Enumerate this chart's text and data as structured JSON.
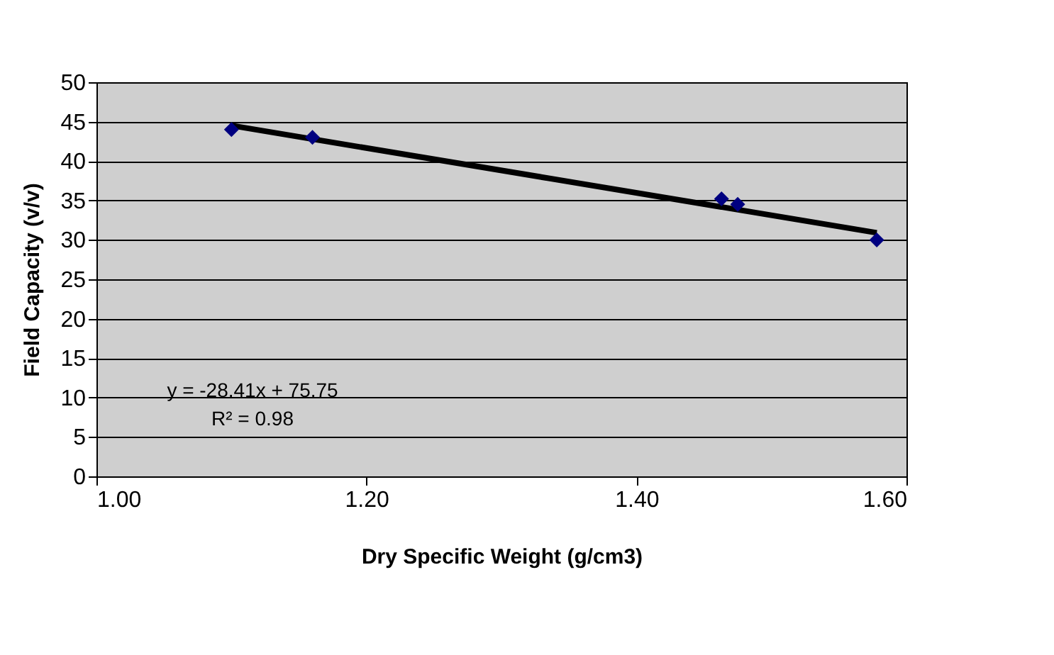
{
  "chart_data": {
    "type": "scatter",
    "xlabel": "Dry Specific Weight (g/cm3)",
    "ylabel": "Field Capacity (v/v)",
    "series": [
      {
        "color": "#000080",
        "marker": "diamond",
        "x": [
          1.1,
          1.16,
          1.463,
          1.475,
          1.578
        ],
        "values": [
          44,
          43,
          35.2,
          34.5,
          30
        ]
      },
      {
        "type": "line",
        "color": "#000000",
        "line_style": "solid",
        "marker": "none",
        "x": [
          1.1,
          1.578
        ],
        "values": [
          44.5,
          30.9
        ]
      }
    ],
    "annotations": [
      "y = -28.41x + 75.75",
      "R² = 0.98"
    ],
    "xlim": [
      1.0,
      1.6
    ],
    "xticks": [
      {
        "value": 1.0,
        "label": "1.00"
      },
      {
        "value": 1.2,
        "label": "1.20"
      },
      {
        "value": 1.4,
        "label": "1.40"
      },
      {
        "value": 1.6,
        "label": "1.60"
      }
    ],
    "ylim": [
      0,
      50
    ],
    "yticks": [
      0,
      5,
      10,
      15,
      20,
      25,
      30,
      35,
      40,
      45,
      50
    ],
    "grid": "y",
    "legend": false
  }
}
